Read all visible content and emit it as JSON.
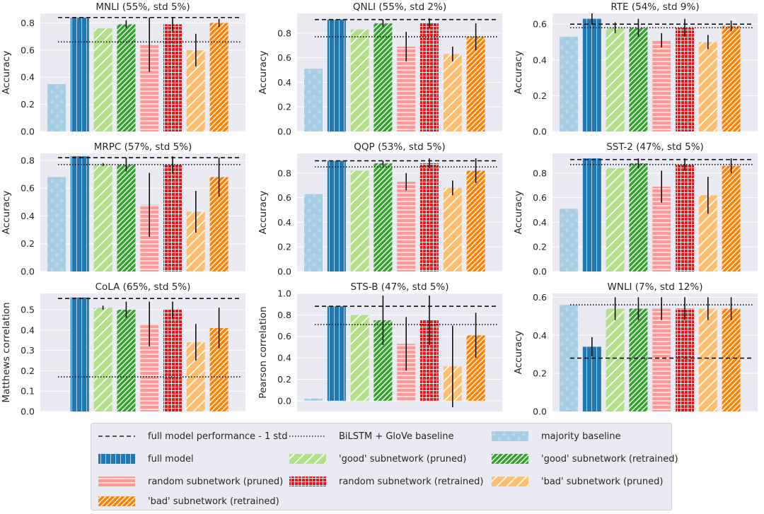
{
  "series_styles": [
    {
      "key": "majority",
      "color": "#a6cee3",
      "pattern": "stars"
    },
    {
      "key": "full",
      "color": "#1f78b4",
      "pattern": "vlines"
    },
    {
      "key": "good_pruned",
      "color": "#b2df8a",
      "pattern": "diag"
    },
    {
      "key": "good_retrained",
      "color": "#33a02c",
      "pattern": "diagdense"
    },
    {
      "key": "random_pruned",
      "color": "#fb9a99",
      "pattern": "hlines"
    },
    {
      "key": "random_retrained",
      "color": "#e31a1c",
      "pattern": "grid"
    },
    {
      "key": "bad_pruned",
      "color": "#fdbf6f",
      "pattern": "diag"
    },
    {
      "key": "bad_retrained",
      "color": "#ff7f00",
      "pattern": "diagdense"
    }
  ],
  "legend": [
    {
      "label": "full model performance - 1 std",
      "type": "dashed"
    },
    {
      "label": "BiLSTM + GloVe baseline",
      "type": "dotted"
    },
    {
      "label": "majority baseline",
      "type": "bar",
      "style": "majority"
    },
    {
      "label": "full model",
      "type": "bar",
      "style": "full"
    },
    {
      "label": "'good' subnetwork (pruned)",
      "type": "bar",
      "style": "good_pruned"
    },
    {
      "label": "'good' subnetwork (retrained)",
      "type": "bar",
      "style": "good_retrained"
    },
    {
      "label": "random subnetwork (pruned)",
      "type": "bar",
      "style": "random_pruned"
    },
    {
      "label": "random subnetwork (retrained)",
      "type": "bar",
      "style": "random_retrained"
    },
    {
      "label": "'bad' subnetwork (pruned)",
      "type": "bar",
      "style": "bad_pruned"
    },
    {
      "label": "'bad' subnetwork (retrained)",
      "type": "bar",
      "style": "bad_retrained"
    }
  ],
  "chart_data": [
    {
      "type": "bar",
      "title": "MNLI (55%, std 5%)",
      "ylabel": "Accuracy",
      "ylim": [
        0,
        0.87
      ],
      "yticks": [
        "0.0",
        "0.2",
        "0.4",
        "0.6",
        "0.8"
      ],
      "ytick_values": [
        0,
        0.2,
        0.4,
        0.6,
        0.8
      ],
      "values": [
        0.35,
        0.84,
        0.76,
        0.79,
        0.64,
        0.79,
        0.6,
        0.8
      ],
      "errors": [
        null,
        null,
        null,
        0.03,
        0.2,
        0.05,
        0.12,
        0.03
      ],
      "dashed": 0.84,
      "dotted": 0.66
    },
    {
      "type": "bar",
      "title": "QNLI (55%, std 2%)",
      "ylabel": "Accuracy",
      "ylim": [
        0,
        0.96
      ],
      "yticks": [
        "0.0",
        "0.2",
        "0.4",
        "0.6",
        "0.8"
      ],
      "ytick_values": [
        0,
        0.2,
        0.4,
        0.6,
        0.8
      ],
      "values": [
        0.51,
        0.91,
        0.83,
        0.88,
        0.69,
        0.88,
        0.63,
        0.77
      ],
      "errors": [
        null,
        null,
        null,
        0.03,
        0.12,
        0.04,
        0.06,
        0.11
      ],
      "dashed": 0.91,
      "dotted": 0.77
    },
    {
      "type": "bar",
      "title": "RTE (54%, std 9%)",
      "ylabel": "Accuracy",
      "ylim": [
        0,
        0.66
      ],
      "yticks": [
        "0.0",
        "0.2",
        "0.4",
        "0.6"
      ],
      "ytick_values": [
        0,
        0.2,
        0.4,
        0.6
      ],
      "values": [
        0.53,
        0.63,
        0.58,
        0.58,
        0.51,
        0.58,
        0.5,
        0.59
      ],
      "errors": [
        null,
        0.03,
        0.03,
        0.05,
        0.04,
        0.05,
        0.04,
        0.03
      ],
      "dashed": 0.6,
      "dotted": 0.58
    },
    {
      "type": "bar",
      "title": "MRPC (57%, std 5%)",
      "ylabel": "Accuracy",
      "ylim": [
        0,
        0.85
      ],
      "yticks": [
        "0.0",
        "0.2",
        "0.4",
        "0.6",
        "0.8"
      ],
      "ytick_values": [
        0,
        0.2,
        0.4,
        0.6,
        0.8
      ],
      "values": [
        0.68,
        0.83,
        0.77,
        0.77,
        0.48,
        0.77,
        0.43,
        0.68
      ],
      "errors": [
        null,
        null,
        0.01,
        0.05,
        0.23,
        0.06,
        0.15,
        0.14
      ],
      "dashed": 0.82,
      "dotted": 0.77
    },
    {
      "type": "bar",
      "title": "QQP (53%, std 5%)",
      "ylabel": "Accuracy",
      "ylim": [
        0,
        0.96
      ],
      "yticks": [
        "0.0",
        "0.2",
        "0.4",
        "0.6",
        "0.8"
      ],
      "ytick_values": [
        0,
        0.2,
        0.4,
        0.6,
        0.8
      ],
      "values": [
        0.63,
        0.9,
        0.82,
        0.88,
        0.73,
        0.88,
        0.68,
        0.82
      ],
      "errors": [
        null,
        null,
        null,
        0.02,
        0.07,
        0.04,
        0.06,
        0.1
      ],
      "dashed": 0.9,
      "dotted": 0.85
    },
    {
      "type": "bar",
      "title": "SST-2 (47%, std 5%)",
      "ylabel": "Accuracy",
      "ylim": [
        0,
        0.96
      ],
      "yticks": [
        "0.0",
        "0.2",
        "0.4",
        "0.6",
        "0.8"
      ],
      "ytick_values": [
        0,
        0.2,
        0.4,
        0.6,
        0.8
      ],
      "values": [
        0.51,
        0.92,
        0.84,
        0.88,
        0.69,
        0.87,
        0.62,
        0.86
      ],
      "errors": [
        null,
        null,
        null,
        0.04,
        0.13,
        0.05,
        0.15,
        0.06
      ],
      "dashed": 0.91,
      "dotted": 0.87
    },
    {
      "type": "bar",
      "title": "CoLA (65%, std 5%)",
      "ylabel": "Matthews correlation",
      "ylim": [
        0,
        0.58
      ],
      "yticks": [
        "0.0",
        "0.1",
        "0.2",
        "0.3",
        "0.4",
        "0.5"
      ],
      "ytick_values": [
        0,
        0.1,
        0.2,
        0.3,
        0.4,
        0.5
      ],
      "values": [
        0.0,
        0.56,
        0.51,
        0.5,
        0.43,
        0.5,
        0.34,
        0.41
      ],
      "errors": [
        null,
        null,
        0.01,
        0.04,
        0.11,
        0.04,
        0.09,
        0.1
      ],
      "dashed": 0.555,
      "dotted": 0.17
    },
    {
      "type": "bar",
      "title": "STS-B (47%, std 5%)",
      "ylabel": "Pearson correlation",
      "ylim": [
        -0.1,
        1.0
      ],
      "yticks": [
        "0.0",
        "0.2",
        "0.4",
        "0.6",
        "0.8",
        "1.0"
      ],
      "ytick_values": [
        0,
        0.2,
        0.4,
        0.6,
        0.8,
        1.0
      ],
      "values": [
        0.02,
        0.88,
        0.8,
        0.75,
        0.53,
        0.75,
        0.32,
        0.61
      ],
      "errors": [
        null,
        null,
        null,
        0.23,
        0.25,
        0.23,
        0.38,
        0.21
      ],
      "dashed": 0.88,
      "dotted": 0.71
    },
    {
      "type": "bar",
      "title": "WNLI (7%, std 12%)",
      "ylabel": "Accuracy",
      "ylim": [
        0,
        0.62
      ],
      "yticks": [
        "0.0",
        "0.2",
        "0.4",
        "0.6"
      ],
      "ytick_values": [
        0,
        0.2,
        0.4,
        0.6
      ],
      "values": [
        0.56,
        0.34,
        0.54,
        0.54,
        0.54,
        0.54,
        0.54,
        0.54
      ],
      "errors": [
        null,
        0.05,
        0.06,
        0.06,
        0.06,
        0.06,
        0.06,
        0.06
      ],
      "dashed": 0.28,
      "dotted": 0.56
    }
  ]
}
